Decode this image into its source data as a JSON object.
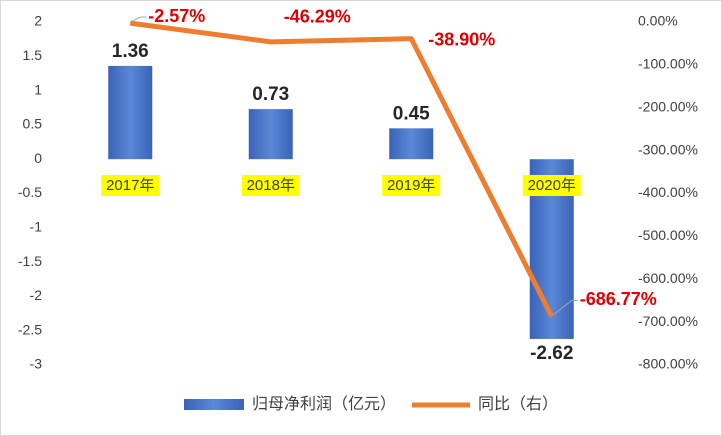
{
  "chart_data": {
    "type": "bar",
    "categories": [
      "2017年",
      "2018年",
      "2019年",
      "2020年"
    ],
    "series": [
      {
        "name": "归母净利润（亿元）",
        "type": "bar",
        "color": "#4472c4",
        "values": [
          1.36,
          0.73,
          0.45,
          -2.62
        ]
      },
      {
        "name": "同比（右）",
        "type": "line",
        "axis": "y2",
        "color": "#ed7d31",
        "values": [
          -2.57,
          -46.29,
          -38.9,
          -686.77
        ],
        "value_labels": [
          "-2.57%",
          "-46.29%",
          "-38.90%",
          "-686.77%"
        ]
      }
    ],
    "ylim": [
      -3,
      2
    ],
    "yticks": [
      2,
      1.5,
      1,
      0.5,
      0,
      -0.5,
      -1,
      -1.5,
      -2,
      -2.5,
      -3
    ],
    "y2lim": [
      -800,
      0
    ],
    "y2ticks": [
      {
        "value": 0,
        "label": "0.00%"
      },
      {
        "value": -100,
        "label": "-100.00%"
      },
      {
        "value": -200,
        "label": "-200.00%"
      },
      {
        "value": -300,
        "label": "-300.00%"
      },
      {
        "value": -400,
        "label": "-400.00%"
      },
      {
        "value": -500,
        "label": "-500.00%"
      },
      {
        "value": -600,
        "label": "-600.00%"
      },
      {
        "value": -700,
        "label": "-700.00%"
      },
      {
        "value": -800,
        "label": "-800.00%"
      }
    ],
    "category_highlight": "#ffff00"
  }
}
